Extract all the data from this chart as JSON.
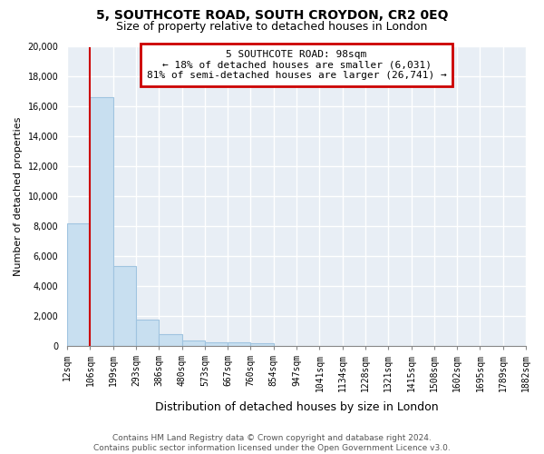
{
  "title": "5, SOUTHCOTE ROAD, SOUTH CROYDON, CR2 0EQ",
  "subtitle": "Size of property relative to detached houses in London",
  "xlabel": "Distribution of detached houses by size in London",
  "ylabel": "Number of detached properties",
  "bar_values": [
    8200,
    16600,
    5300,
    1750,
    800,
    350,
    250,
    200,
    150,
    0,
    0,
    0,
    0,
    0,
    0,
    0,
    0,
    0,
    0,
    0
  ],
  "bar_labels": [
    "12sqm",
    "106sqm",
    "199sqm",
    "293sqm",
    "386sqm",
    "480sqm",
    "573sqm",
    "667sqm",
    "760sqm",
    "854sqm",
    "947sqm",
    "1041sqm",
    "1134sqm",
    "1228sqm",
    "1321sqm",
    "1415sqm",
    "1508sqm",
    "1602sqm",
    "1695sqm",
    "1789sqm",
    "1882sqm"
  ],
  "bar_color": "#c8dff0",
  "bar_edge_color": "#a0c4e0",
  "property_line_x": 1,
  "property_line_color": "#cc0000",
  "annotation_line1": "5 SOUTHCOTE ROAD: 98sqm",
  "annotation_line2": "← 18% of detached houses are smaller (6,031)",
  "annotation_line3": "81% of semi-detached houses are larger (26,741) →",
  "annotation_box_color": "white",
  "annotation_box_edge": "#cc0000",
  "ylim": [
    0,
    20000
  ],
  "yticks": [
    0,
    2000,
    4000,
    6000,
    8000,
    10000,
    12000,
    14000,
    16000,
    18000,
    20000
  ],
  "footer_line1": "Contains HM Land Registry data © Crown copyright and database right 2024.",
  "footer_line2": "Contains public sector information licensed under the Open Government Licence v3.0.",
  "bg_color": "#ffffff",
  "plot_bg_color": "#e8eef5",
  "grid_color": "#ffffff",
  "title_fontsize": 10,
  "subtitle_fontsize": 9,
  "ylabel_fontsize": 8,
  "xlabel_fontsize": 9,
  "tick_fontsize": 7,
  "footer_fontsize": 6.5,
  "annotation_fontsize": 8
}
